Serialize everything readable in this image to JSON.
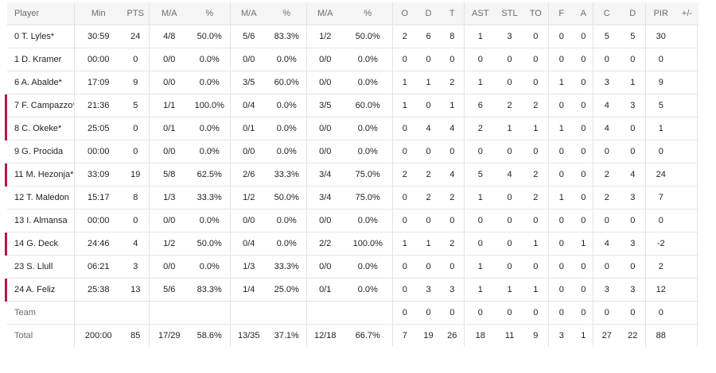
{
  "header": [
    "Player",
    "Min",
    "PTS",
    "M/A",
    "%",
    "M/A",
    "%",
    "M/A",
    "%",
    "O",
    "D",
    "T",
    "AST",
    "STL",
    "TO",
    "F",
    "A",
    "C",
    "D",
    "PIR",
    "+/-"
  ],
  "rows": [
    {
      "player": "0 T. Lyles*",
      "on_court": false,
      "cells": [
        "30:59",
        "24",
        "4/8",
        "50.0%",
        "5/6",
        "83.3%",
        "1/2",
        "50.0%",
        "2",
        "6",
        "8",
        "1",
        "3",
        "0",
        "0",
        "0",
        "5",
        "5",
        "30",
        ""
      ]
    },
    {
      "player": "1 D. Kramer",
      "on_court": false,
      "cells": [
        "00:00",
        "0",
        "0/0",
        "0.0%",
        "0/0",
        "0.0%",
        "0/0",
        "0.0%",
        "0",
        "0",
        "0",
        "0",
        "0",
        "0",
        "0",
        "0",
        "0",
        "0",
        "0",
        ""
      ]
    },
    {
      "player": "6 A. Abalde*",
      "on_court": false,
      "cells": [
        "17:09",
        "9",
        "0/0",
        "0.0%",
        "3/5",
        "60.0%",
        "0/0",
        "0.0%",
        "1",
        "1",
        "2",
        "1",
        "0",
        "0",
        "1",
        "0",
        "3",
        "1",
        "9",
        ""
      ]
    },
    {
      "player": "7 F. Campazzo*",
      "on_court": true,
      "cells": [
        "21:36",
        "5",
        "1/1",
        "100.0%",
        "0/4",
        "0.0%",
        "3/5",
        "60.0%",
        "1",
        "0",
        "1",
        "6",
        "2",
        "2",
        "0",
        "0",
        "4",
        "3",
        "5",
        ""
      ]
    },
    {
      "player": "8 C. Okeke*",
      "on_court": true,
      "cells": [
        "25:05",
        "0",
        "0/1",
        "0.0%",
        "0/1",
        "0.0%",
        "0/0",
        "0.0%",
        "0",
        "4",
        "4",
        "2",
        "1",
        "1",
        "1",
        "0",
        "4",
        "0",
        "1",
        ""
      ]
    },
    {
      "player": "9 G. Procida",
      "on_court": false,
      "cells": [
        "00:00",
        "0",
        "0/0",
        "0.0%",
        "0/0",
        "0.0%",
        "0/0",
        "0.0%",
        "0",
        "0",
        "0",
        "0",
        "0",
        "0",
        "0",
        "0",
        "0",
        "0",
        "0",
        ""
      ]
    },
    {
      "player": "11 M. Hezonja*",
      "on_court": true,
      "cells": [
        "33:09",
        "19",
        "5/8",
        "62.5%",
        "2/6",
        "33.3%",
        "3/4",
        "75.0%",
        "2",
        "2",
        "4",
        "5",
        "4",
        "2",
        "0",
        "0",
        "2",
        "4",
        "24",
        ""
      ]
    },
    {
      "player": "12 T. Maledon",
      "on_court": false,
      "cells": [
        "15:17",
        "8",
        "1/3",
        "33.3%",
        "1/2",
        "50.0%",
        "3/4",
        "75.0%",
        "0",
        "2",
        "2",
        "1",
        "0",
        "2",
        "1",
        "0",
        "2",
        "3",
        "7",
        ""
      ]
    },
    {
      "player": "13 I. Almansa",
      "on_court": false,
      "cells": [
        "00:00",
        "0",
        "0/0",
        "0.0%",
        "0/0",
        "0.0%",
        "0/0",
        "0.0%",
        "0",
        "0",
        "0",
        "0",
        "0",
        "0",
        "0",
        "0",
        "0",
        "0",
        "0",
        ""
      ]
    },
    {
      "player": "14 G. Deck",
      "on_court": true,
      "cells": [
        "24:46",
        "4",
        "1/2",
        "50.0%",
        "0/4",
        "0.0%",
        "2/2",
        "100.0%",
        "1",
        "1",
        "2",
        "0",
        "0",
        "1",
        "0",
        "1",
        "4",
        "3",
        "-2",
        ""
      ]
    },
    {
      "player": "23 S. Llull",
      "on_court": false,
      "cells": [
        "06:21",
        "3",
        "0/0",
        "0.0%",
        "1/3",
        "33.3%",
        "0/0",
        "0.0%",
        "0",
        "0",
        "0",
        "1",
        "0",
        "0",
        "0",
        "0",
        "0",
        "0",
        "2",
        ""
      ]
    },
    {
      "player": "24 A. Feliz",
      "on_court": true,
      "cells": [
        "25:38",
        "13",
        "5/6",
        "83.3%",
        "1/4",
        "25.0%",
        "0/1",
        "0.0%",
        "0",
        "3",
        "3",
        "1",
        "1",
        "1",
        "0",
        "0",
        "3",
        "3",
        "12",
        ""
      ]
    },
    {
      "player": "Team",
      "on_court": false,
      "muted": true,
      "cells": [
        "",
        "",
        "",
        "",
        "",
        "",
        "",
        "",
        "0",
        "0",
        "0",
        "0",
        "0",
        "0",
        "0",
        "0",
        "0",
        "0",
        "0",
        ""
      ]
    },
    {
      "player": "Total",
      "on_court": false,
      "total": true,
      "cells": [
        "200:00",
        "85",
        "17/29",
        "58.6%",
        "13/35",
        "37.1%",
        "12/18",
        "66.7%",
        "7",
        "19",
        "26",
        "18",
        "11",
        "9",
        "3",
        "1",
        "27",
        "22",
        "88",
        ""
      ]
    }
  ],
  "colors": {
    "on_court_marker": "#b3174b"
  }
}
